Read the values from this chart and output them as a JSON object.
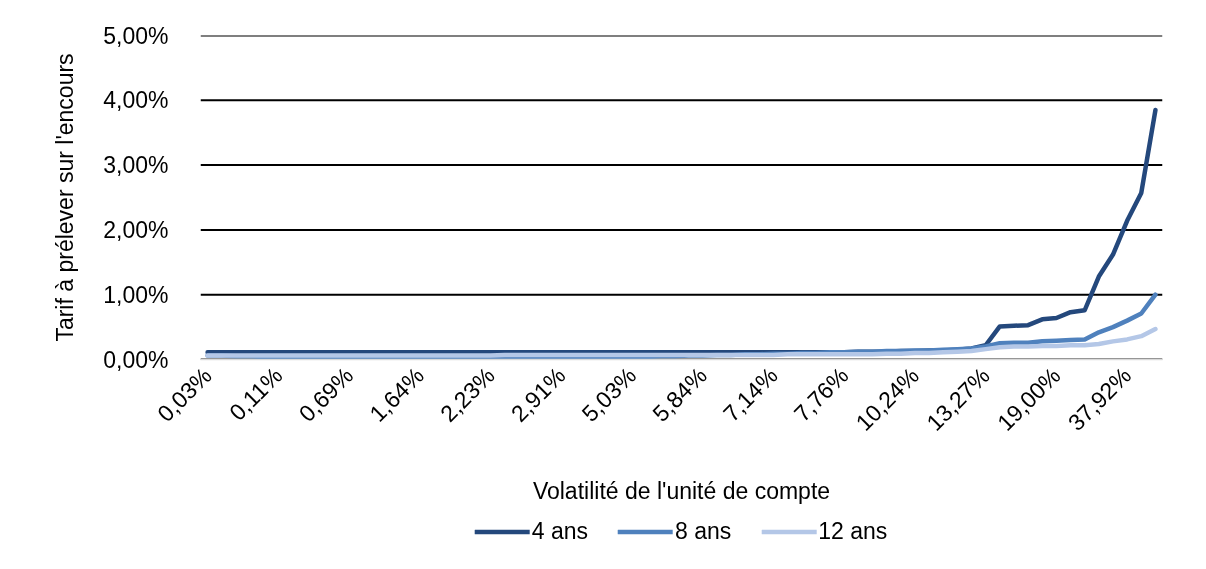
{
  "chart_data": {
    "type": "line",
    "xlabel": "Volatilité de l'unité de compte",
    "ylabel": "Tarif à prélever sur l'encours",
    "categories": [
      "0,03%",
      null,
      null,
      null,
      null,
      "0,11%",
      null,
      null,
      null,
      null,
      "0,69%",
      null,
      null,
      null,
      null,
      "1,64%",
      null,
      null,
      null,
      null,
      "2,23%",
      null,
      null,
      null,
      null,
      "2,91%",
      null,
      null,
      null,
      null,
      "5,03%",
      null,
      null,
      null,
      null,
      "5,84%",
      null,
      null,
      null,
      null,
      "7,14%",
      null,
      null,
      null,
      null,
      "7,76%",
      null,
      null,
      null,
      null,
      "10,24%",
      null,
      null,
      null,
      null,
      "13,27%",
      null,
      null,
      null,
      null,
      "19,00%",
      null,
      null,
      null,
      null,
      "37,92%",
      null,
      null
    ],
    "series": [
      {
        "name": "4 ans",
        "color": "#24487c",
        "values": [
          0.11,
          0.11,
          0.11,
          0.11,
          0.11,
          0.11,
          0.11,
          0.11,
          0.11,
          0.11,
          0.11,
          0.11,
          0.11,
          0.11,
          0.11,
          0.11,
          0.11,
          0.11,
          0.11,
          0.11,
          0.11,
          0.11,
          0.11,
          0.11,
          0.11,
          0.11,
          0.11,
          0.11,
          0.11,
          0.11,
          0.11,
          0.11,
          0.11,
          0.11,
          0.11,
          0.11,
          0.11,
          0.11,
          0.11,
          0.11,
          0.11,
          0.11,
          0.11,
          0.11,
          0.11,
          0.11,
          0.12,
          0.12,
          0.12,
          0.13,
          0.13,
          0.14,
          0.14,
          0.15,
          0.17,
          0.22,
          0.51,
          0.52,
          0.53,
          0.62,
          0.64,
          0.73,
          0.76,
          1.28,
          1.62,
          2.14,
          2.57,
          3.85
        ]
      },
      {
        "name": "8 ans",
        "color": "#4f81bd",
        "values": [
          0.06,
          0.06,
          0.05,
          0.05,
          0.04,
          0.04,
          0.03,
          0.02,
          0.02,
          0.02,
          0.02,
          0.02,
          0.02,
          0.02,
          0.02,
          0.02,
          0.02,
          0.02,
          0.02,
          0.02,
          0.02,
          0.02,
          0.02,
          0.02,
          0.02,
          0.02,
          0.02,
          0.02,
          0.03,
          0.03,
          0.04,
          0.04,
          0.05,
          0.05,
          0.06,
          0.06,
          0.07,
          0.07,
          0.08,
          0.08,
          0.09,
          0.09,
          0.1,
          0.1,
          0.11,
          0.11,
          0.12,
          0.12,
          0.13,
          0.13,
          0.14,
          0.14,
          0.15,
          0.16,
          0.17,
          0.2,
          0.25,
          0.26,
          0.26,
          0.28,
          0.29,
          0.3,
          0.31,
          0.42,
          0.5,
          0.6,
          0.71,
          1.0
        ]
      },
      {
        "name": "12 ans",
        "color": "#b4c7e7",
        "values": [
          0.06,
          0.06,
          0.06,
          0.06,
          0.06,
          0.06,
          0.06,
          0.06,
          0.06,
          0.06,
          0.06,
          0.06,
          0.06,
          0.06,
          0.06,
          0.06,
          0.06,
          0.06,
          0.06,
          0.06,
          0.06,
          0.07,
          0.07,
          0.07,
          0.07,
          0.07,
          0.07,
          0.07,
          0.07,
          0.07,
          0.07,
          0.07,
          0.07,
          0.07,
          0.07,
          0.07,
          0.07,
          0.07,
          0.07,
          0.07,
          0.07,
          0.08,
          0.08,
          0.08,
          0.08,
          0.08,
          0.08,
          0.08,
          0.09,
          0.09,
          0.1,
          0.1,
          0.11,
          0.12,
          0.13,
          0.16,
          0.19,
          0.2,
          0.2,
          0.21,
          0.21,
          0.22,
          0.22,
          0.24,
          0.28,
          0.31,
          0.36,
          0.47
        ]
      }
    ],
    "ylim": [
      0,
      5
    ],
    "yticks": [
      {
        "value": 0,
        "label": "0,00%"
      },
      {
        "value": 1,
        "label": "1,00%"
      },
      {
        "value": 2,
        "label": "2,00%"
      },
      {
        "value": 3,
        "label": "3,00%"
      },
      {
        "value": 4,
        "label": "4,00%"
      },
      {
        "value": 5,
        "label": "5,00%"
      }
    ],
    "grid": "y",
    "legend": "bottom"
  }
}
